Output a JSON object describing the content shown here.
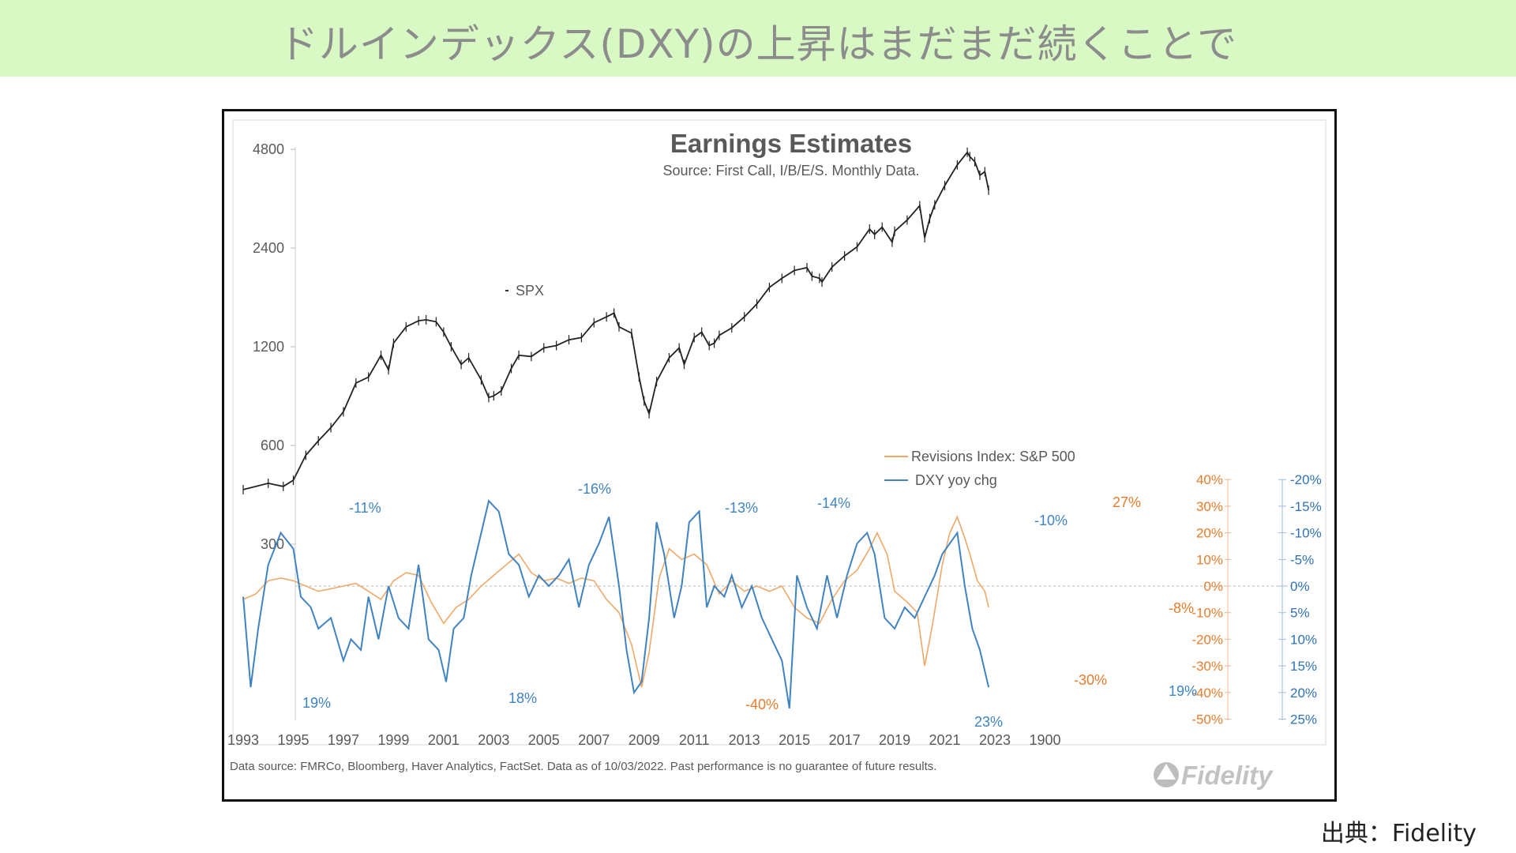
{
  "banner": {
    "title": "ドルインデックス(DXY)の上昇はまだまだ続くことで"
  },
  "credit": "出典：Fidelity",
  "colors": {
    "spx": "#222222",
    "revisions": "#f0a868",
    "dxy": "#3f83c2",
    "orange_axis": "#e87c2c",
    "blue_axis": "#2f72b4",
    "banner_bg": "#d8f8c4"
  },
  "chart_data": {
    "type": "line",
    "title": "Earnings Estimates",
    "subtitle": "Source: First Call, I/B/E/S. Monthly Data.",
    "footnote": "Data source: FMRCo, Bloomberg, Haver Analytics, FactSet. Data as of 10/03/2022. Past performance is no guarantee of future results.",
    "logo": "Fidelity",
    "x_ticks": [
      "1993",
      "1995",
      "1997",
      "1999",
      "2001",
      "2003",
      "2005",
      "2007",
      "2009",
      "2011",
      "2013",
      "2015",
      "2017",
      "2019",
      "2021",
      "2023",
      "1900"
    ],
    "xlim": [
      1993,
      2023
    ],
    "left_axis": {
      "scale": "log",
      "ticks": [
        "4800",
        "2400",
        "1200",
        "600",
        "300"
      ]
    },
    "right_axis_revisions": {
      "ticks": [
        "40%",
        "30%",
        "20%",
        "10%",
        "0%",
        "-10%",
        "-20%",
        "-30%",
        "-40%",
        "-50%"
      ],
      "ylim": [
        -50,
        40
      ]
    },
    "right_axis_dxy": {
      "inverted": true,
      "ticks": [
        "-20%",
        "-15%",
        "-10%",
        "-5%",
        "0%",
        "5%",
        "10%",
        "15%",
        "20%",
        "25%"
      ],
      "ylim": [
        25,
        -20
      ]
    },
    "legend": {
      "placement": "center-right"
    },
    "series": [
      {
        "name": "SPX",
        "axis": "left",
        "x": [
          1993.0,
          1994.0,
          1994.6,
          1995.0,
          1995.5,
          1996.0,
          1996.5,
          1997.0,
          1997.5,
          1998.0,
          1998.5,
          1998.8,
          1999.0,
          1999.5,
          2000.0,
          2000.3,
          2000.7,
          2001.0,
          2001.3,
          2001.7,
          2002.0,
          2002.5,
          2002.8,
          2003.0,
          2003.3,
          2003.7,
          2004.0,
          2004.5,
          2005.0,
          2005.5,
          2006.0,
          2006.5,
          2007.0,
          2007.5,
          2007.8,
          2008.0,
          2008.5,
          2008.8,
          2009.0,
          2009.2,
          2009.5,
          2010.0,
          2010.4,
          2010.6,
          2011.0,
          2011.3,
          2011.6,
          2011.8,
          2012.0,
          2012.5,
          2013.0,
          2013.5,
          2014.0,
          2014.5,
          2015.0,
          2015.5,
          2015.7,
          2016.0,
          2016.1,
          2016.5,
          2017.0,
          2017.5,
          2018.0,
          2018.2,
          2018.5,
          2018.9,
          2019.0,
          2019.5,
          2020.0,
          2020.2,
          2020.4,
          2020.6,
          2021.0,
          2021.5,
          2021.9,
          2022.0,
          2022.2,
          2022.4,
          2022.6,
          2022.75
        ],
        "y": [
          440,
          460,
          450,
          470,
          560,
          620,
          680,
          760,
          930,
          970,
          1130,
          1020,
          1230,
          1380,
          1440,
          1450,
          1430,
          1330,
          1200,
          1060,
          1110,
          950,
          840,
          850,
          880,
          1030,
          1130,
          1120,
          1190,
          1210,
          1260,
          1280,
          1420,
          1480,
          1520,
          1380,
          1320,
          970,
          820,
          750,
          940,
          1110,
          1190,
          1060,
          1280,
          1330,
          1210,
          1230,
          1300,
          1370,
          1480,
          1620,
          1820,
          1940,
          2050,
          2090,
          1970,
          1940,
          1890,
          2100,
          2270,
          2420,
          2740,
          2640,
          2780,
          2500,
          2700,
          2920,
          3230,
          2580,
          2950,
          3250,
          3720,
          4300,
          4700,
          4560,
          4400,
          4000,
          4100,
          3600
        ],
        "label": "SPX"
      },
      {
        "name": "Revisions Index: S&P 500",
        "axis": "right_revisions",
        "x": [
          1993.0,
          1993.5,
          1994.0,
          1994.5,
          1995.0,
          1995.5,
          1996.0,
          1996.5,
          1997.0,
          1997.5,
          1998.0,
          1998.5,
          1999.0,
          1999.5,
          2000.0,
          2000.5,
          2001.0,
          2001.5,
          2002.0,
          2002.5,
          2003.0,
          2003.5,
          2004.0,
          2004.5,
          2005.0,
          2005.5,
          2006.0,
          2006.5,
          2007.0,
          2007.5,
          2008.0,
          2008.5,
          2008.9,
          2009.2,
          2009.6,
          2010.0,
          2010.5,
          2011.0,
          2011.5,
          2012.0,
          2012.5,
          2013.0,
          2013.5,
          2014.0,
          2014.5,
          2015.0,
          2015.5,
          2016.0,
          2016.5,
          2017.0,
          2017.5,
          2018.0,
          2018.3,
          2018.7,
          2019.0,
          2019.5,
          2019.9,
          2020.2,
          2020.5,
          2020.9,
          2021.2,
          2021.5,
          2021.8,
          2022.0,
          2022.3,
          2022.6,
          2022.75
        ],
        "y": [
          -5,
          -3,
          2,
          3,
          2,
          0,
          -2,
          -1,
          0,
          1,
          -2,
          -5,
          2,
          5,
          4,
          -6,
          -14,
          -8,
          -5,
          0,
          4,
          8,
          12,
          5,
          2,
          3,
          1,
          3,
          2,
          -5,
          -10,
          -22,
          -38,
          -25,
          3,
          14,
          10,
          12,
          8,
          -3,
          2,
          -2,
          0,
          -2,
          0,
          -8,
          -12,
          -14,
          -5,
          2,
          6,
          14,
          20,
          12,
          -2,
          -6,
          -10,
          -30,
          -15,
          8,
          20,
          26,
          18,
          12,
          2,
          -2,
          -8
        ],
        "annotations": [
          "27%",
          "-40%",
          "-30%",
          "-8%"
        ]
      },
      {
        "name": "DXY yoy chg",
        "axis": "right_dxy",
        "x": [
          1993.0,
          1993.3,
          1993.6,
          1994.0,
          1994.5,
          1995.0,
          1995.3,
          1995.7,
          1996.0,
          1996.5,
          1997.0,
          1997.3,
          1997.7,
          1998.0,
          1998.4,
          1998.8,
          1999.2,
          1999.6,
          2000.0,
          2000.4,
          2000.8,
          2001.1,
          2001.4,
          2001.8,
          2002.1,
          2002.5,
          2002.8,
          2003.2,
          2003.6,
          2004.0,
          2004.4,
          2004.8,
          2005.2,
          2005.6,
          2006.0,
          2006.4,
          2006.8,
          2007.2,
          2007.6,
          2008.0,
          2008.3,
          2008.6,
          2008.9,
          2009.2,
          2009.5,
          2009.8,
          2010.2,
          2010.5,
          2010.8,
          2011.2,
          2011.5,
          2011.8,
          2012.2,
          2012.5,
          2012.9,
          2013.3,
          2013.7,
          2014.1,
          2014.5,
          2014.8,
          2015.1,
          2015.5,
          2015.9,
          2016.3,
          2016.7,
          2017.1,
          2017.5,
          2017.9,
          2018.2,
          2018.6,
          2019.0,
          2019.4,
          2019.8,
          2020.2,
          2020.6,
          2020.9,
          2021.2,
          2021.5,
          2021.8,
          2022.1,
          2022.4,
          2022.75
        ],
        "y": [
          2,
          19,
          8,
          -4,
          -10,
          -7,
          2,
          4,
          8,
          6,
          14,
          10,
          12,
          2,
          10,
          0,
          6,
          8,
          -4,
          10,
          12,
          18,
          8,
          6,
          -2,
          -10,
          -16,
          -14,
          -6,
          -4,
          2,
          -2,
          0,
          -2,
          -5,
          4,
          -4,
          -8,
          -13,
          0,
          12,
          20,
          18,
          6,
          -12,
          -6,
          6,
          0,
          -12,
          -14,
          4,
          0,
          2,
          -2,
          4,
          0,
          6,
          10,
          14,
          23,
          -2,
          4,
          8,
          -2,
          6,
          -2,
          -8,
          -10,
          -6,
          6,
          8,
          4,
          6,
          2,
          -2,
          -6,
          -8,
          -10,
          0,
          8,
          12,
          19
        ],
        "annotations": [
          "19%",
          "-11%",
          "18%",
          "-16%",
          "-13%",
          "-14%",
          "23%",
          "-10%",
          "19%"
        ]
      }
    ]
  }
}
